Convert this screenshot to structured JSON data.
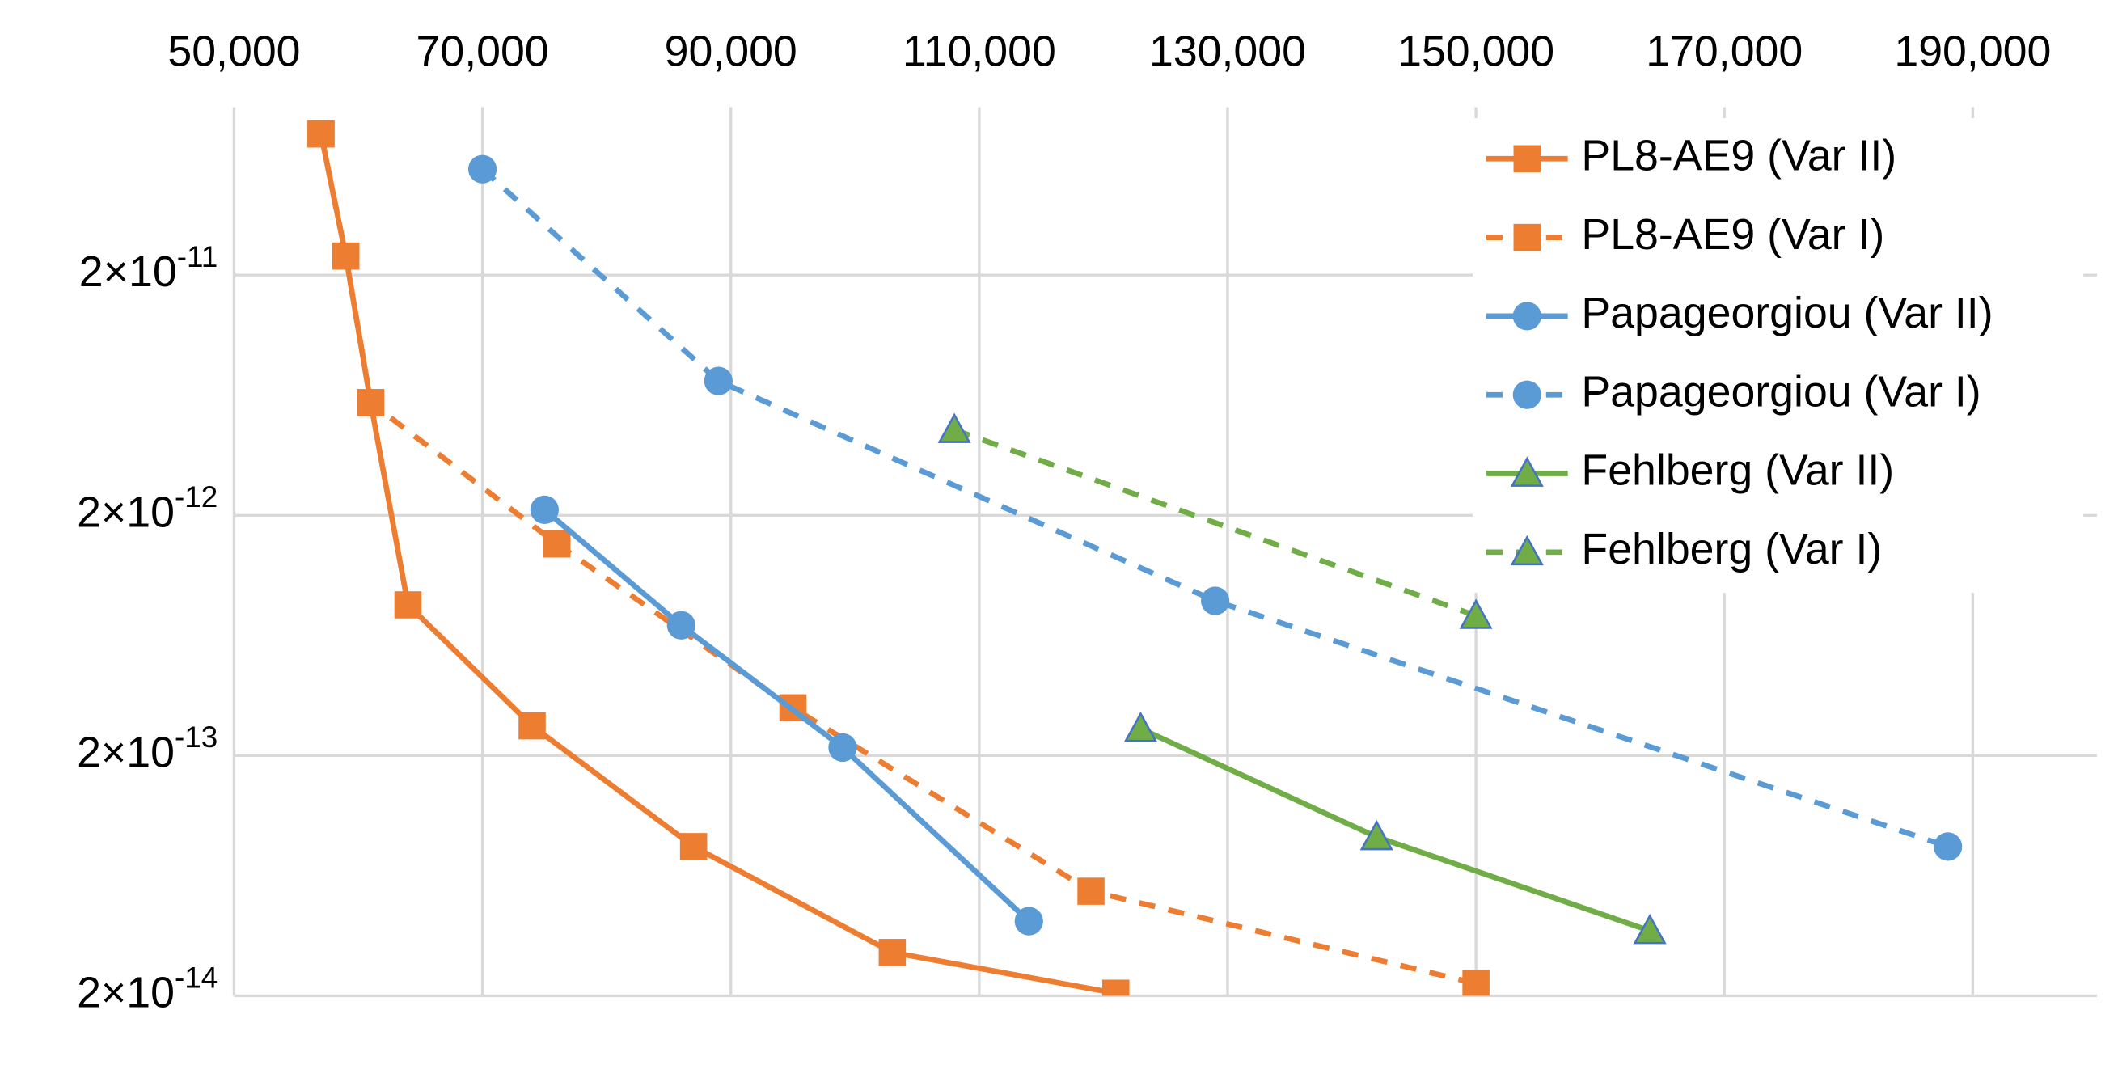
{
  "chart_data": {
    "type": "line",
    "ylog": true,
    "grid": true,
    "legend": "upper right",
    "xaxis": "top",
    "xlim": [
      50000,
      200000
    ],
    "xticks": [
      {
        "value": 50000,
        "label": "50,000"
      },
      {
        "value": 70000,
        "label": "70,000"
      },
      {
        "value": 90000,
        "label": "90,000"
      },
      {
        "value": 110000,
        "label": "110,000"
      },
      {
        "value": 130000,
        "label": "130,000"
      },
      {
        "value": 150000,
        "label": "150,000"
      },
      {
        "value": 170000,
        "label": "170,000"
      },
      {
        "value": 190000,
        "label": "190,000"
      }
    ],
    "ylim": [
      2e-14,
      1e-10
    ],
    "yticks": [
      {
        "value": 2e-11,
        "label": "2×10",
        "exponent": "-11"
      },
      {
        "value": 2e-12,
        "label": "2×10",
        "exponent": "-12"
      },
      {
        "value": 2e-13,
        "label": "2×10",
        "exponent": "-13"
      },
      {
        "value": 2e-14,
        "label": "2×10",
        "exponent": "-14"
      }
    ],
    "series": [
      {
        "name": "PL8-AE9 (Var II)",
        "color": "#ed7d31",
        "dashed": false,
        "marker": "square",
        "x": [
          57000,
          59000,
          61000,
          64000,
          74000,
          87000,
          103000,
          121000
        ],
        "values": [
          7.74e-11,
          2.4e-11,
          5.89e-12,
          8.48e-13,
          2.66e-13,
          8.36e-14,
          3.03e-14,
          2.05e-14
        ]
      },
      {
        "name": "PL8-AE9 (Var I)",
        "color": "#ed7d31",
        "dashed": true,
        "marker": "square",
        "x": [
          57000,
          59000,
          61000,
          76000,
          95000,
          119000,
          150000
        ],
        "values": [
          7.74e-11,
          2.4e-11,
          5.89e-12,
          1.52e-12,
          3.16e-13,
          5.45e-14,
          2.25e-14
        ]
      },
      {
        "name": "Papageorgiou (Var II)",
        "color": "#5b9bd5",
        "dashed": false,
        "marker": "circle",
        "x": [
          75000,
          86000,
          99000,
          114000
        ],
        "values": [
          2.11e-12,
          6.97e-13,
          2.16e-13,
          4.09e-14
        ]
      },
      {
        "name": "Papageorgiou (Var I)",
        "color": "#5b9bd5",
        "dashed": true,
        "marker": "circle",
        "x": [
          70000,
          89000,
          129000,
          188000
        ],
        "values": [
          5.52e-11,
          7.25e-12,
          8.81e-13,
          8.36e-14
        ]
      },
      {
        "name": "Fehlberg (Var II)",
        "color": "#70ad47",
        "dashed": false,
        "marker": "triangle",
        "x": [
          123000,
          142000,
          164000
        ],
        "values": [
          2.59e-13,
          9.17e-14,
          3.73e-14
        ]
      },
      {
        "name": "Fehlberg (Var I)",
        "color": "#70ad47",
        "dashed": true,
        "marker": "triangle",
        "x": [
          108000,
          150000
        ],
        "values": [
          4.54e-12,
          7.64e-13
        ]
      }
    ]
  }
}
